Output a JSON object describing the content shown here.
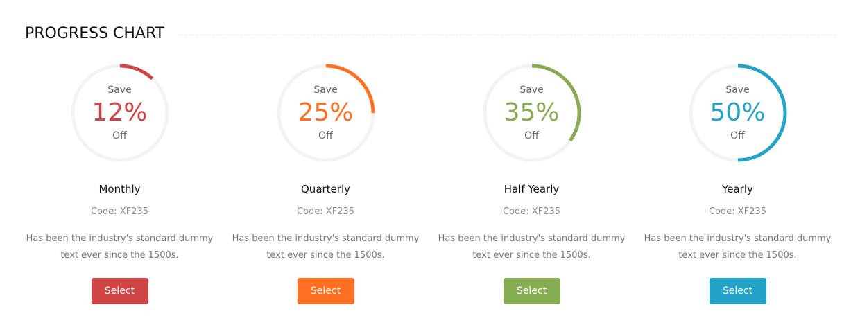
{
  "header": {
    "title": "PROGRESS CHART"
  },
  "plans": [
    {
      "name": "Monthly",
      "percent": 12,
      "percent_label": "12%",
      "save": "Save",
      "off": "Off",
      "code": "Code: XF235",
      "description": "Has been the industry's standard dummy text ever since the 1500s.",
      "button": "Select",
      "color": "#cf4545"
    },
    {
      "name": "Quarterly",
      "percent": 25,
      "percent_label": "25%",
      "save": "Save",
      "off": "Off",
      "code": "Code: XF235",
      "description": "Has been the industry's standard dummy text ever since the 1500s.",
      "button": "Select",
      "color": "#fd7022"
    },
    {
      "name": "Half Yearly",
      "percent": 35,
      "percent_label": "35%",
      "save": "Save",
      "off": "Off",
      "code": "Code: XF235",
      "description": "Has been the industry's standard dummy text ever since the 1500s.",
      "button": "Select",
      "color": "#86ad52"
    },
    {
      "name": "Yearly",
      "percent": 50,
      "percent_label": "50%",
      "save": "Save",
      "off": "Off",
      "code": "Code: XF235",
      "description": "Has been the industry's standard dummy text ever since the 1500s.",
      "button": "Select",
      "color": "#23a3c8"
    }
  ]
}
